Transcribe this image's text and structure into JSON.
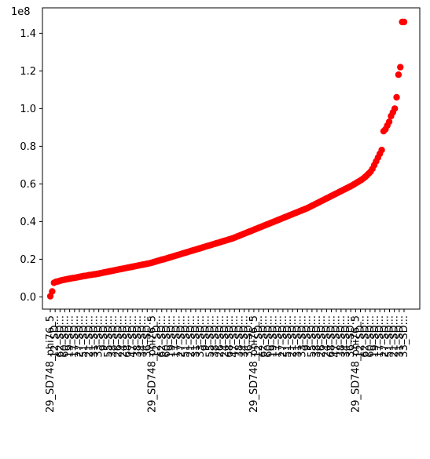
{
  "chart_data": {
    "type": "scatter",
    "title": "",
    "xlabel": "",
    "ylabel": "",
    "y_offset_text": "1e8",
    "ylim": [
      -0.065,
      1.535
    ],
    "yticks": [
      0.0,
      0.2,
      0.4,
      0.6,
      0.8,
      1.0,
      1.2,
      1.4
    ],
    "ytick_labels": [
      "0.0",
      "0.2",
      "0.4",
      "0.6",
      "0.8",
      "1.0",
      "1.2",
      "1.4"
    ],
    "marker_color": "#ff0000",
    "grid": false,
    "legend": "none",
    "point_count": 191,
    "xtick_labels_legible": [
      "29_SD748_phi76_5",
      "12_SD...",
      "62_SD...",
      "60_SD...",
      "19_SD...",
      "17_SD...",
      "27_SD...",
      "51_SD...",
      "21_SD...",
      "31_SD...",
      "33_SD...",
      "9_SD...",
      "55_SD...",
      "38_SD...",
      "26_SD...",
      "24_SD...",
      "68_SD...",
      "47_SD...",
      "38_SD...",
      "34_SD...",
      "36_SD..."
    ],
    "ticks_visible": 74,
    "y_values": [
      0.0035,
      0.029,
      0.075,
      0.08,
      0.082,
      0.085,
      0.088,
      0.09,
      0.092,
      0.094,
      0.096,
      0.098,
      0.1,
      0.101,
      0.103,
      0.105,
      0.107,
      0.109,
      0.111,
      0.112,
      0.114,
      0.116,
      0.117,
      0.119,
      0.12,
      0.122,
      0.124,
      0.126,
      0.128,
      0.13,
      0.132,
      0.134,
      0.136,
      0.138,
      0.14,
      0.142,
      0.144,
      0.146,
      0.148,
      0.15,
      0.152,
      0.154,
      0.156,
      0.158,
      0.16,
      0.162,
      0.164,
      0.166,
      0.168,
      0.17,
      0.172,
      0.174,
      0.176,
      0.178,
      0.18,
      0.183,
      0.186,
      0.189,
      0.192,
      0.195,
      0.198,
      0.2,
      0.203,
      0.206,
      0.209,
      0.212,
      0.215,
      0.218,
      0.221,
      0.224,
      0.227,
      0.23,
      0.233,
      0.236,
      0.239,
      0.242,
      0.245,
      0.248,
      0.251,
      0.254,
      0.257,
      0.26,
      0.263,
      0.266,
      0.269,
      0.272,
      0.275,
      0.278,
      0.281,
      0.284,
      0.287,
      0.29,
      0.293,
      0.296,
      0.299,
      0.302,
      0.305,
      0.308,
      0.311,
      0.315,
      0.319,
      0.323,
      0.327,
      0.331,
      0.335,
      0.339,
      0.343,
      0.347,
      0.351,
      0.355,
      0.359,
      0.363,
      0.367,
      0.371,
      0.375,
      0.379,
      0.383,
      0.387,
      0.391,
      0.395,
      0.399,
      0.403,
      0.407,
      0.411,
      0.415,
      0.419,
      0.423,
      0.427,
      0.431,
      0.435,
      0.439,
      0.443,
      0.447,
      0.451,
      0.455,
      0.459,
      0.463,
      0.467,
      0.471,
      0.476,
      0.481,
      0.486,
      0.491,
      0.496,
      0.501,
      0.506,
      0.511,
      0.516,
      0.521,
      0.526,
      0.531,
      0.536,
      0.541,
      0.546,
      0.551,
      0.556,
      0.561,
      0.566,
      0.571,
      0.576,
      0.581,
      0.586,
      0.591,
      0.597,
      0.603,
      0.609,
      0.615,
      0.621,
      0.628,
      0.636,
      0.645,
      0.655,
      0.665,
      0.68,
      0.7,
      0.72,
      0.74,
      0.76,
      0.78,
      0.88,
      0.89,
      0.91,
      0.93,
      0.96,
      0.98,
      1.0,
      1.06,
      1.18,
      1.22,
      1.46,
      1.46
    ]
  }
}
